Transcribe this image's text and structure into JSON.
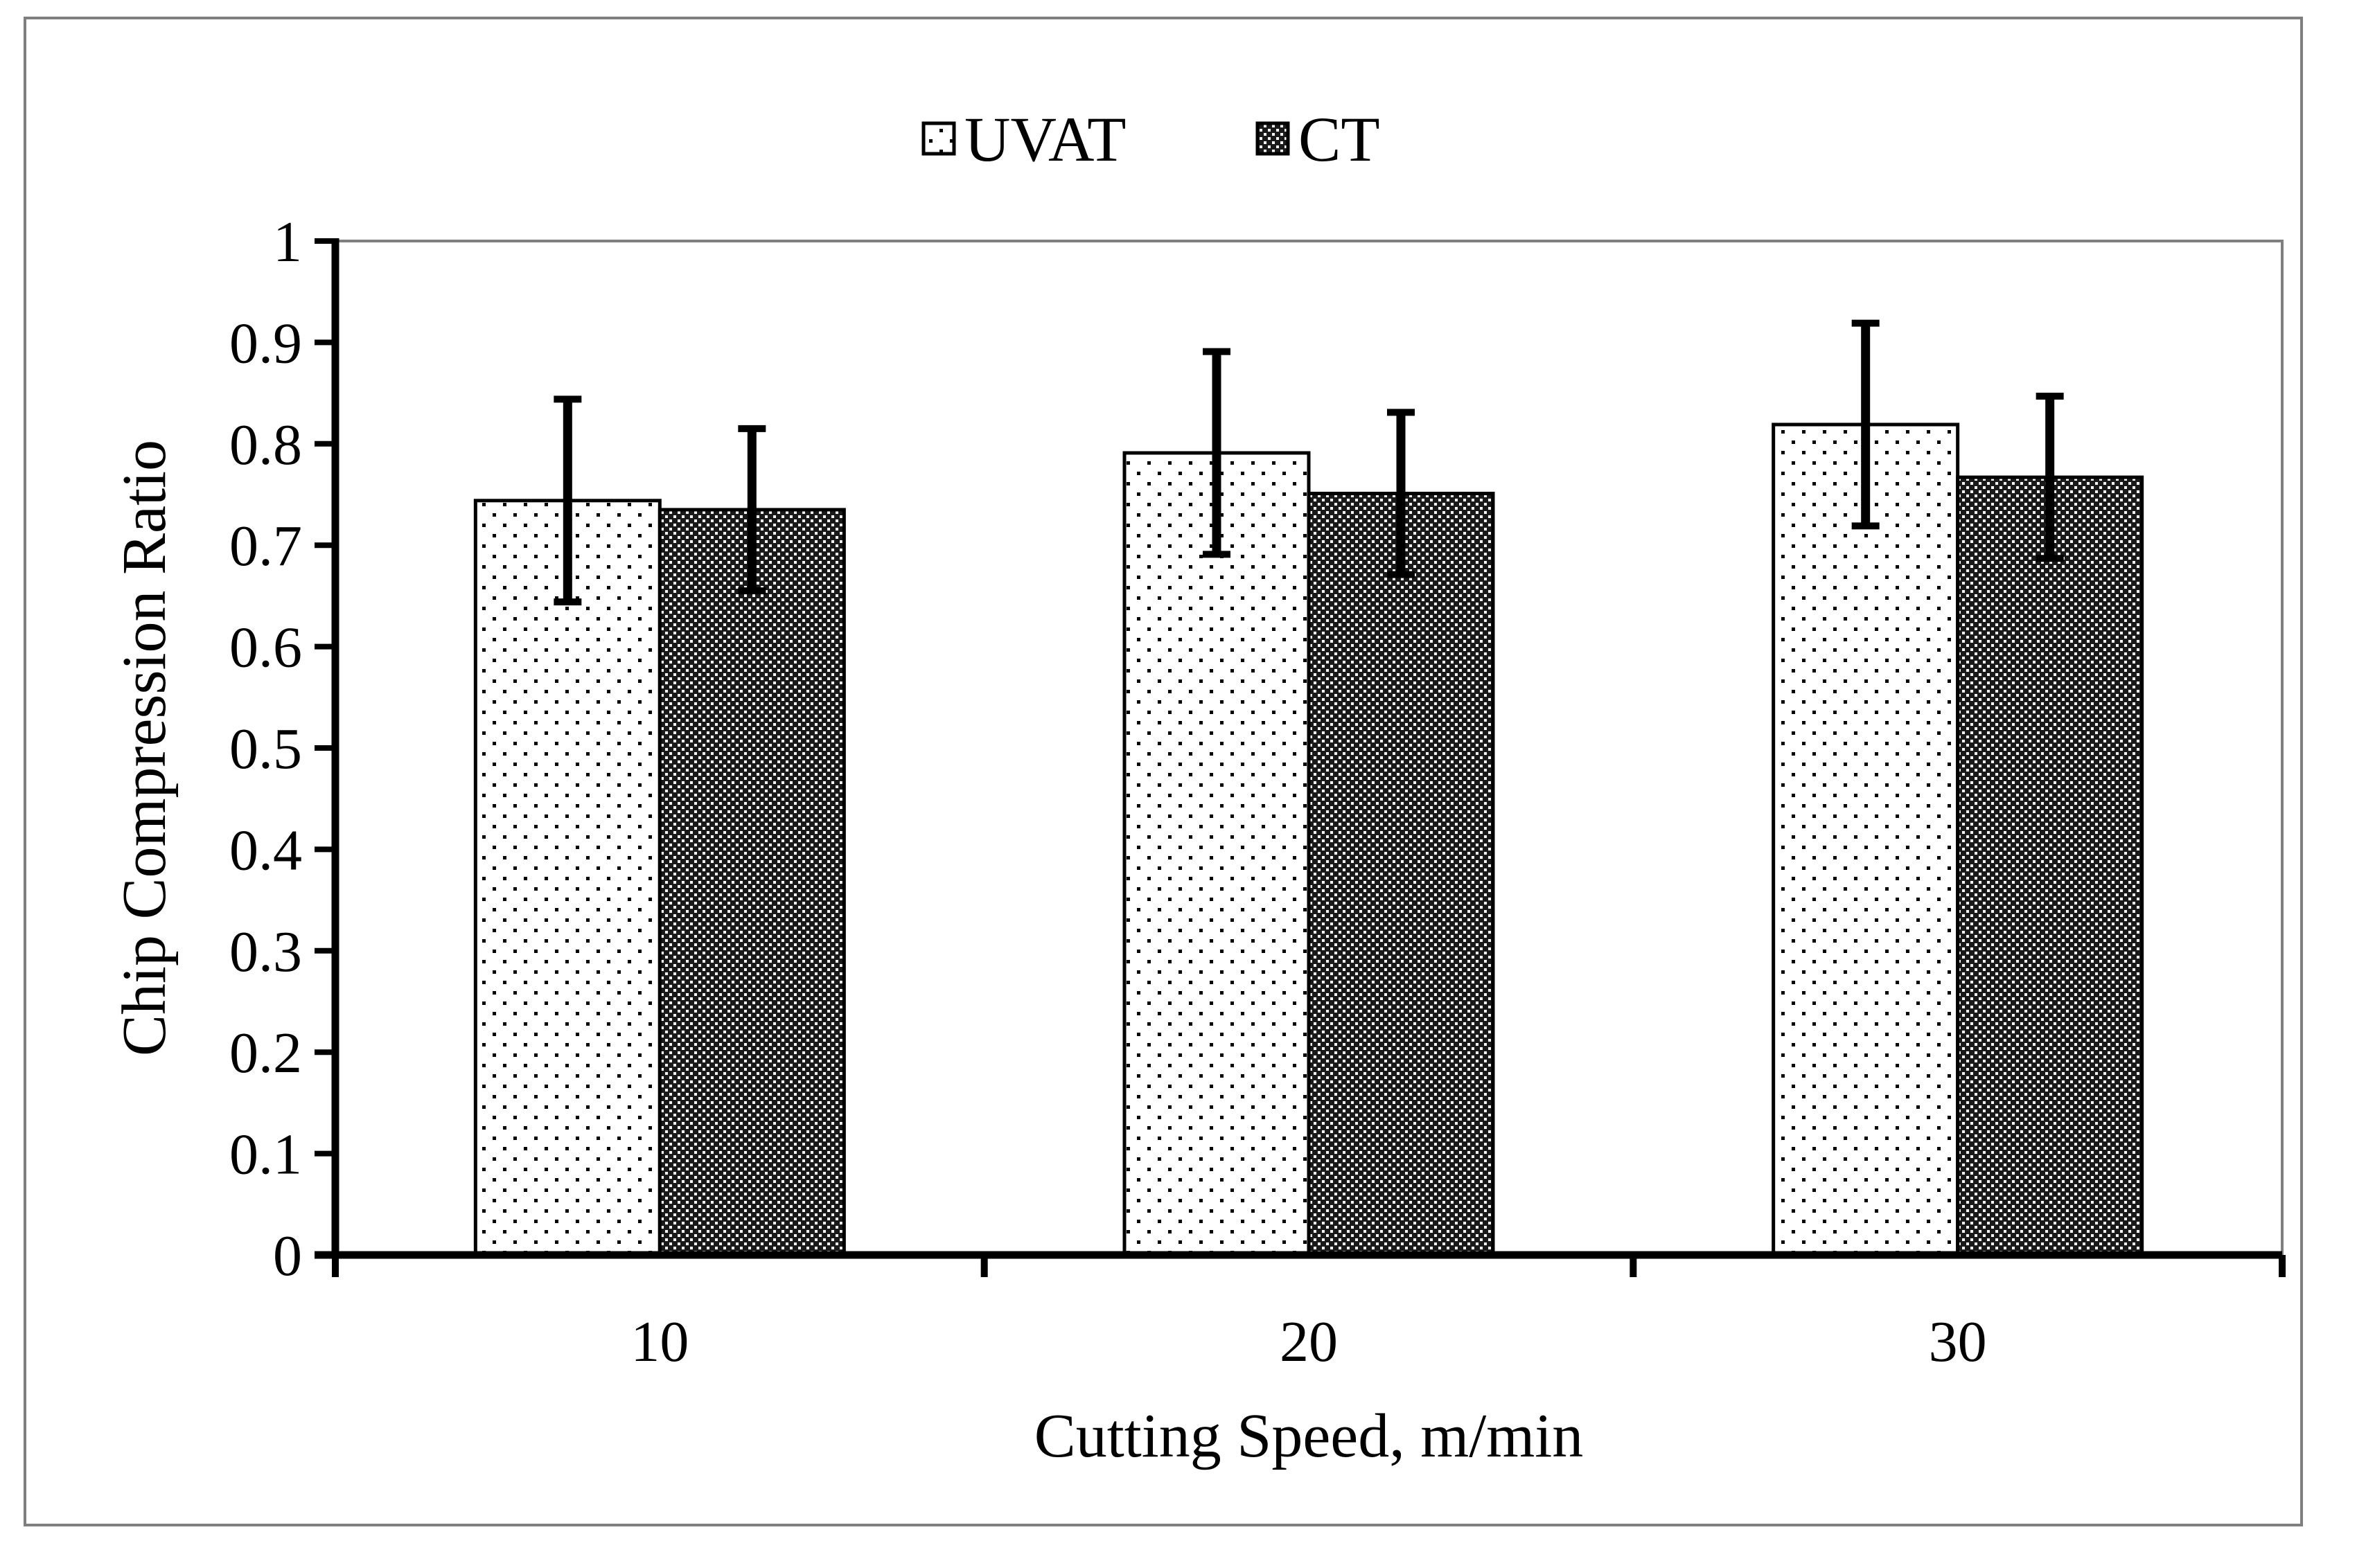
{
  "chart_data": {
    "type": "bar",
    "title": "",
    "xlabel": "Cutting Speed, m/min",
    "ylabel": "Chip Compression Ratio",
    "categories": [
      "10",
      "20",
      "30"
    ],
    "series": [
      {
        "name": "UVAT",
        "values": [
          0.744,
          0.791,
          0.819
        ],
        "error": [
          0.1,
          0.1,
          0.1
        ],
        "fill_pattern": "sparse-dots",
        "color": "#000000"
      },
      {
        "name": "CT",
        "values": [
          0.735,
          0.751,
          0.767
        ],
        "error": [
          0.08,
          0.08,
          0.08
        ],
        "fill_pattern": "dense-checker",
        "color": "#000000"
      }
    ],
    "ylim": [
      0,
      1
    ],
    "yticks": [
      "0",
      "0.1",
      "0.2",
      "0.3",
      "0.4",
      "0.5",
      "0.6",
      "0.7",
      "0.8",
      "0.9",
      "1"
    ],
    "grid": false,
    "legend_position": "top-center"
  }
}
